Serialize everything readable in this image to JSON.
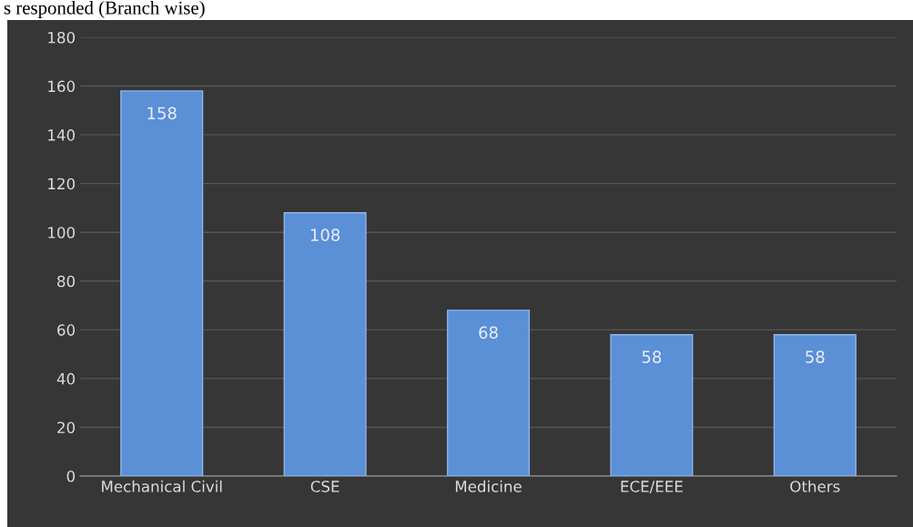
{
  "chart_data": {
    "type": "bar",
    "title": "s responded (Branch wise)",
    "categories": [
      "Mechanical Civil",
      "CSE",
      "Medicine",
      "ECE/EEE",
      "Others"
    ],
    "values": [
      158,
      108,
      68,
      58,
      58
    ],
    "color": "#5b8fd6",
    "ylim": [
      0,
      180
    ],
    "yticks": [
      0,
      20,
      40,
      60,
      80,
      100,
      120,
      140,
      160,
      180
    ],
    "grid": "y",
    "data_labels": true
  }
}
